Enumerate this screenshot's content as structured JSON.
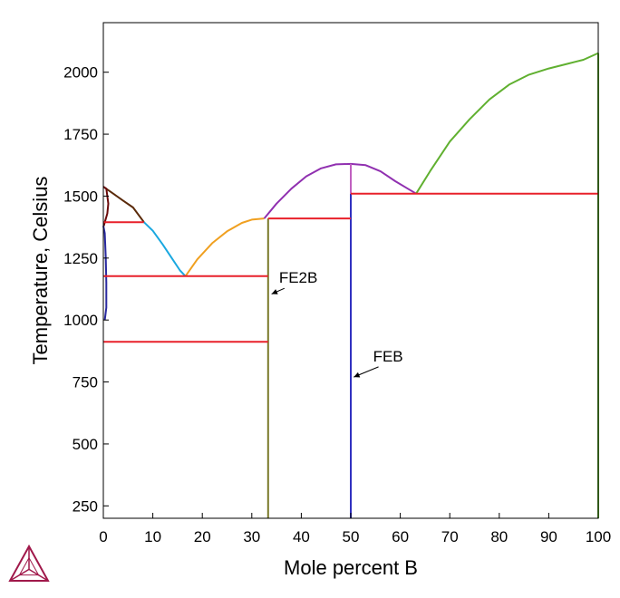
{
  "chart_data": {
    "type": "line",
    "title": "",
    "xlabel": "Mole percent B",
    "ylabel": "Temperature, Celsius",
    "xlim": [
      0,
      100
    ],
    "ylim": [
      200,
      2200
    ],
    "xticks": [
      0,
      10,
      20,
      30,
      40,
      50,
      60,
      70,
      80,
      90,
      100
    ],
    "yticks": [
      250,
      500,
      750,
      1000,
      1250,
      1500,
      1750,
      2000
    ],
    "grid": false,
    "legend": "none",
    "series": [
      {
        "color": "#5a2a0a",
        "points": [
          [
            0,
            1538
          ],
          [
            2,
            1510
          ],
          [
            4,
            1482
          ],
          [
            6,
            1454
          ],
          [
            8.2,
            1395
          ]
        ]
      },
      {
        "color": "#6a0a0a",
        "points": [
          [
            0,
            1538
          ],
          [
            0.6,
            1530
          ],
          [
            1.0,
            1470
          ],
          [
            0.8,
            1430
          ],
          [
            0.3,
            1394
          ],
          [
            0.1,
            1380
          ]
        ]
      },
      {
        "color": "#2a2aa0",
        "points": [
          [
            0,
            1380
          ],
          [
            0.3,
            1350
          ],
          [
            0.5,
            1250
          ],
          [
            0.6,
            1150
          ],
          [
            0.6,
            1050
          ],
          [
            0.3,
            1000
          ]
        ]
      },
      {
        "color": "#1aa8e0",
        "points": [
          [
            8.2,
            1395
          ],
          [
            10,
            1360
          ],
          [
            12,
            1305
          ],
          [
            14,
            1245
          ],
          [
            15.5,
            1200
          ],
          [
            16.6,
            1177
          ]
        ]
      },
      {
        "color": "#f0a020",
        "points": [
          [
            16.6,
            1177
          ],
          [
            19,
            1245
          ],
          [
            22,
            1310
          ],
          [
            25,
            1358
          ],
          [
            28,
            1392
          ],
          [
            30,
            1405
          ],
          [
            32.5,
            1410
          ]
        ]
      },
      {
        "color": "#9030b0",
        "points": [
          [
            32.5,
            1410
          ],
          [
            35,
            1470
          ],
          [
            38,
            1530
          ],
          [
            41,
            1580
          ],
          [
            44,
            1612
          ],
          [
            47,
            1628
          ],
          [
            50,
            1630
          ],
          [
            53,
            1625
          ],
          [
            56,
            1600
          ],
          [
            59,
            1560
          ],
          [
            61.5,
            1530
          ],
          [
            63.2,
            1510
          ]
        ]
      },
      {
        "color": "#60b030",
        "points": [
          [
            63.2,
            1510
          ],
          [
            66,
            1600
          ],
          [
            70,
            1720
          ],
          [
            74,
            1810
          ],
          [
            78,
            1890
          ],
          [
            82,
            1950
          ],
          [
            86,
            1990
          ],
          [
            90,
            2015
          ],
          [
            94,
            2035
          ],
          [
            97,
            2050
          ],
          [
            100,
            2077
          ]
        ]
      },
      {
        "color": "#7a7a2a",
        "points": [
          [
            33.3,
            200
          ],
          [
            33.3,
            1410
          ]
        ]
      },
      {
        "color": "#3030c0",
        "points": [
          [
            50,
            200
          ],
          [
            50,
            1510
          ]
        ]
      },
      {
        "color": "#c060c0",
        "points": [
          [
            50,
            1510
          ],
          [
            50,
            1630
          ]
        ]
      },
      {
        "color": "#60b030",
        "points": [
          [
            100,
            200
          ],
          [
            100,
            2077
          ]
        ]
      },
      {
        "color": "#e8202a",
        "points": [
          [
            0,
            1395
          ],
          [
            8.2,
            1395
          ]
        ]
      },
      {
        "color": "#e8202a",
        "points": [
          [
            0,
            1177
          ],
          [
            33.3,
            1177
          ]
        ]
      },
      {
        "color": "#e8202a",
        "points": [
          [
            0,
            912
          ],
          [
            33.3,
            912
          ]
        ]
      },
      {
        "color": "#e8202a",
        "points": [
          [
            33.3,
            1410
          ],
          [
            50,
            1410
          ]
        ]
      },
      {
        "color": "#e8202a",
        "points": [
          [
            50,
            1510
          ],
          [
            100,
            1510
          ]
        ]
      }
    ],
    "annotations": [
      {
        "text": "FE2B",
        "x": 35.5,
        "y": 1172,
        "arrow_to": [
          34.0,
          1105
        ]
      },
      {
        "text": "FEB",
        "x": 54.5,
        "y": 855,
        "arrow_to": [
          50.6,
          770
        ]
      }
    ]
  },
  "logo": {
    "name": "thermo-calc-triangle-logo",
    "color": "#a0184a"
  }
}
